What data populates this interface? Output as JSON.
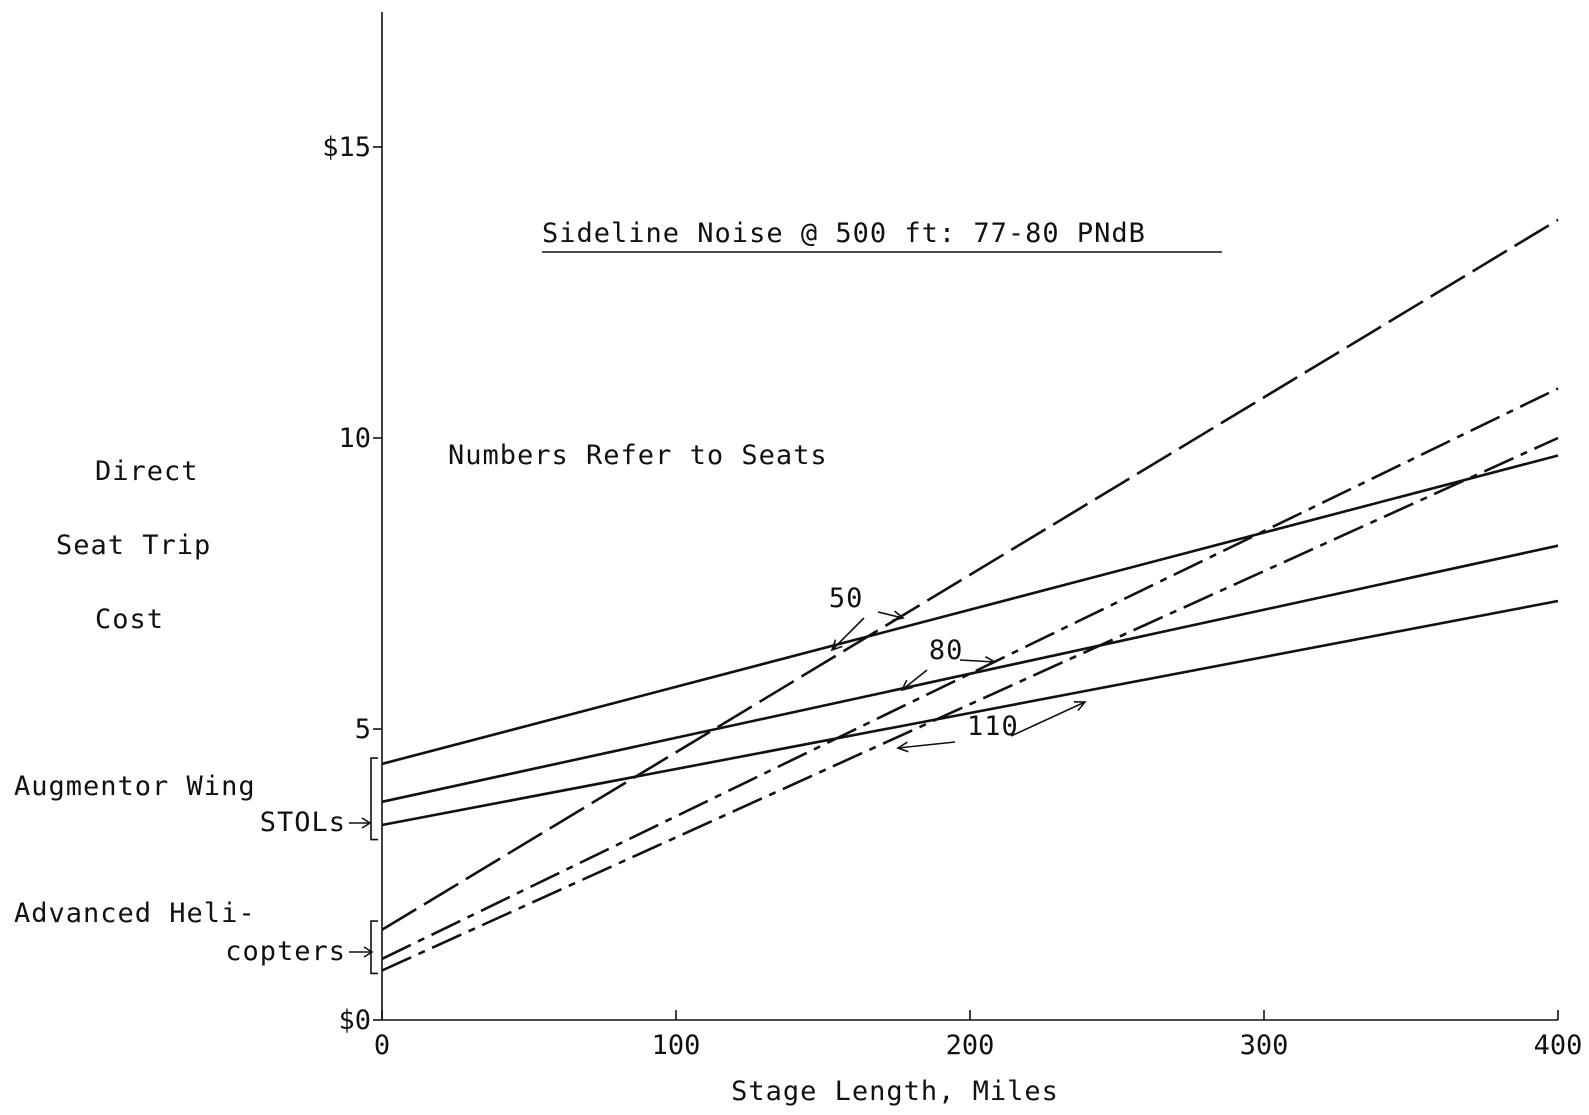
{
  "chart_data": {
    "type": "line",
    "title": "Sideline Noise @ 500 ft: 77-80 PNdB",
    "subtitle": "Numbers Refer to Seats",
    "xlabel": "Stage Length, Miles",
    "ylabel_lines": [
      "Direct",
      "Seat Trip",
      "Cost"
    ],
    "xlim": [
      0,
      400
    ],
    "ylim": [
      0,
      15
    ],
    "x_ticks": [
      {
        "value": 0,
        "label": "0"
      },
      {
        "value": 100,
        "label": "100"
      },
      {
        "value": 200,
        "label": "200"
      },
      {
        "value": 300,
        "label": "300"
      },
      {
        "value": 400,
        "label": "400"
      }
    ],
    "y_ticks": [
      {
        "value": 0,
        "label": "$0"
      },
      {
        "value": 5,
        "label": "5"
      },
      {
        "value": 10,
        "label": "10"
      },
      {
        "value": 15,
        "label": "$15"
      }
    ],
    "group_labels": [
      {
        "lines": [
          "Augmentor Wing",
          "STOLs"
        ],
        "y_range": [
          3.1,
          4.5
        ]
      },
      {
        "lines": [
          "Advanced Heli-",
          "copters"
        ],
        "y_range": [
          0.8,
          1.7
        ]
      }
    ],
    "series": [
      {
        "group": "STOL",
        "seats": "50",
        "style": "solid",
        "x": [
          0,
          400
        ],
        "y": [
          4.4,
          9.7
        ]
      },
      {
        "group": "STOL",
        "seats": "80",
        "style": "solid",
        "x": [
          0,
          400
        ],
        "y": [
          3.75,
          8.15
        ]
      },
      {
        "group": "STOL",
        "seats": "110",
        "style": "solid",
        "x": [
          0,
          400
        ],
        "y": [
          3.35,
          7.2
        ]
      },
      {
        "group": "Helicopter",
        "seats": "50",
        "style": "long-dash",
        "x": [
          0,
          400
        ],
        "y": [
          1.55,
          13.75
        ]
      },
      {
        "group": "Helicopter",
        "seats": "80",
        "style": "dash-dot",
        "x": [
          0,
          400
        ],
        "y": [
          1.05,
          10.85
        ]
      },
      {
        "group": "Helicopter",
        "seats": "110",
        "style": "dash-dot",
        "x": [
          0,
          400
        ],
        "y": [
          0.85,
          10.0
        ]
      }
    ],
    "annotations": [
      {
        "text": "50",
        "x": 152,
        "y": 7.1
      },
      {
        "text": "80",
        "x": 186,
        "y": 6.2
      },
      {
        "text": "110",
        "x": 199,
        "y": 4.9
      }
    ],
    "grid": false,
    "legend": "none"
  }
}
